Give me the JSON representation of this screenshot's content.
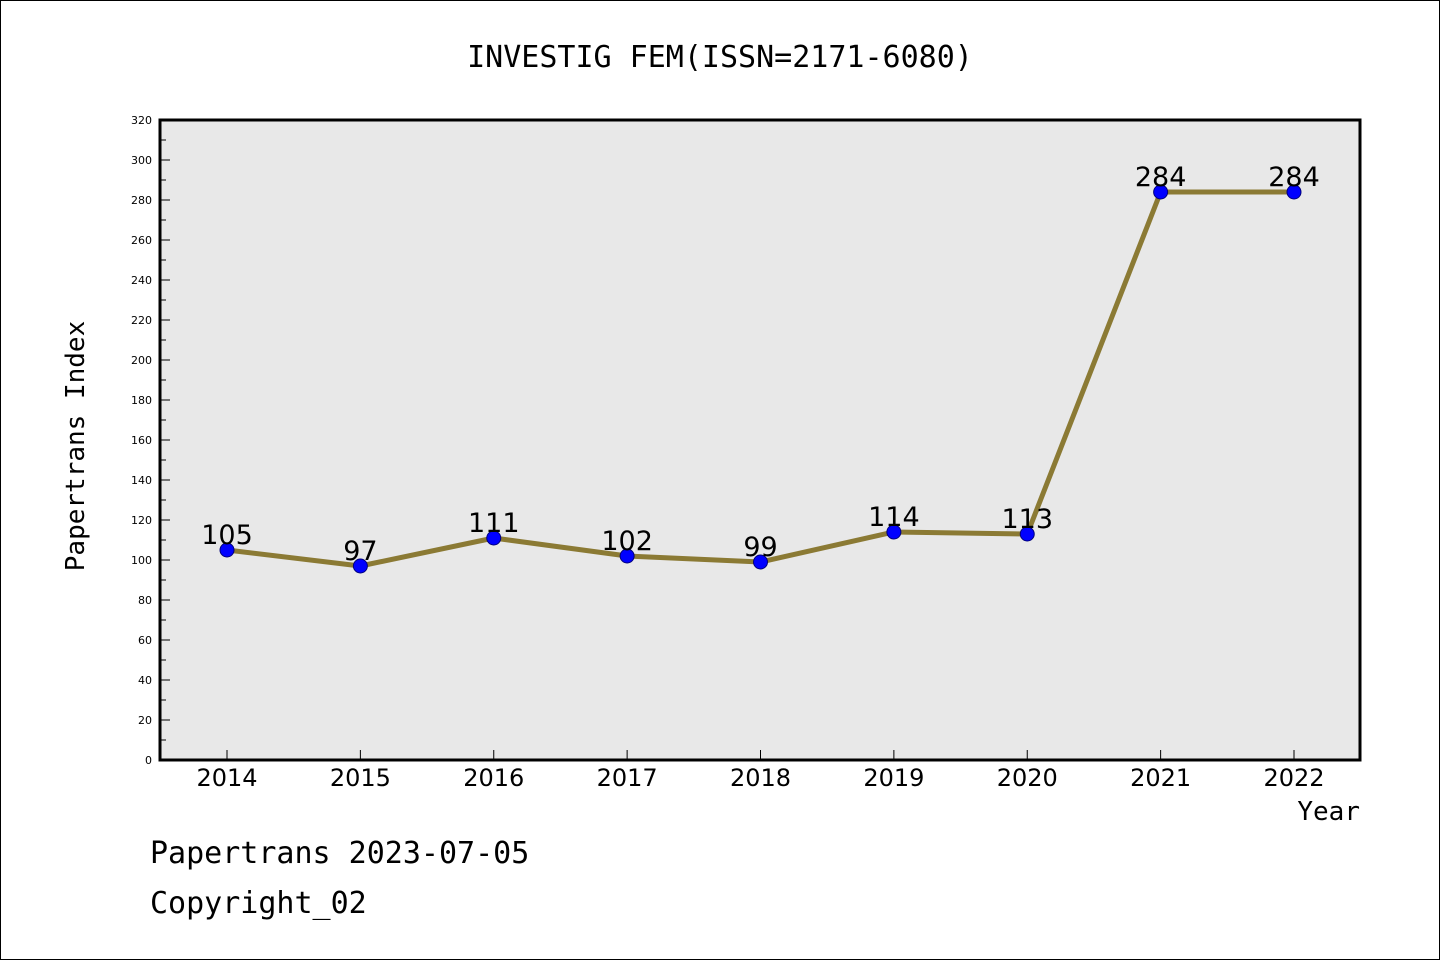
{
  "chart_data": {
    "type": "line",
    "title": "INVESTIG FEM(ISSN=2171-6080)",
    "xlabel": "Year",
    "ylabel": "Papertrans Index",
    "categories": [
      "2014",
      "2015",
      "2016",
      "2017",
      "2018",
      "2019",
      "2020",
      "2021",
      "2022"
    ],
    "series": [
      {
        "values": [
          105,
          97,
          111,
          102,
          99,
          114,
          113,
          284,
          284
        ]
      }
    ],
    "ylim": [
      0,
      320
    ],
    "ytick_step": 20,
    "ytick_labels": [
      "0",
      "20",
      "40",
      "60",
      "80",
      "100",
      "120",
      "140",
      "160",
      "180",
      "200",
      "220",
      "240",
      "260",
      "280",
      "300",
      "320"
    ],
    "grid": false,
    "legend": "none",
    "data_labels": true,
    "colors": {
      "line": "#8b7a34",
      "marker": "#0000ff",
      "plot_background": "#e8e8e8"
    }
  },
  "footer": {
    "line1": "Papertrans 2023-07-05",
    "line2": "Copyright_02"
  }
}
